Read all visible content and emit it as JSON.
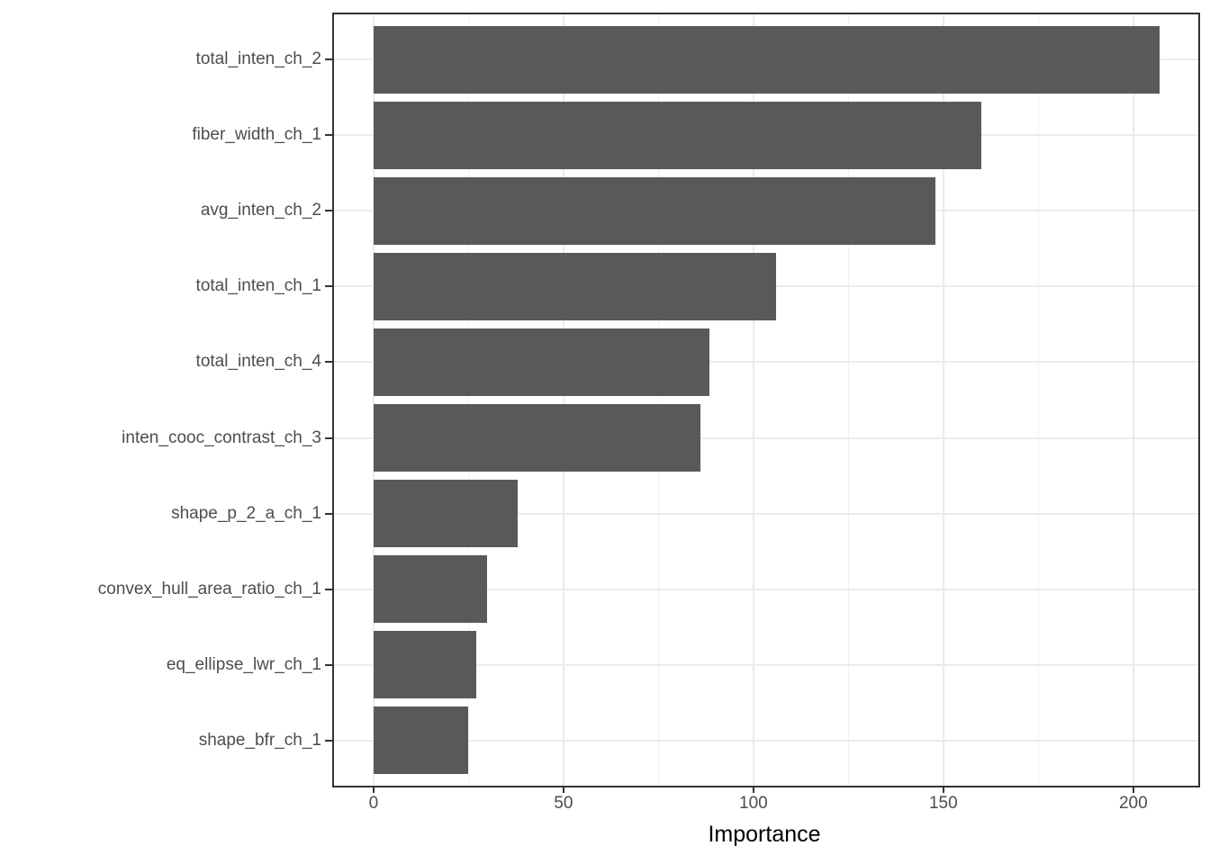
{
  "chart_data": {
    "type": "bar",
    "orientation": "horizontal",
    "title": "",
    "xlabel": "Importance",
    "ylabel": "",
    "categories": [
      "total_inten_ch_2",
      "fiber_width_ch_1",
      "avg_inten_ch_2",
      "total_inten_ch_1",
      "total_inten_ch_4",
      "inten_cooc_contrast_ch_3",
      "shape_p_2_a_ch_1",
      "convex_hull_area_ratio_ch_1",
      "eq_ellipse_lwr_ch_1",
      "shape_bfr_ch_1"
    ],
    "values": [
      207,
      160,
      148,
      106,
      88.5,
      86,
      38,
      30,
      27,
      25
    ],
    "x_major_ticks": [
      0,
      50,
      100,
      150,
      200
    ],
    "x_minor_ticks": [
      25,
      75,
      125,
      175
    ],
    "xlim": [
      -10.4,
      217.1
    ],
    "bar_width_fraction": 0.9,
    "band_expansion": 0.6,
    "grid": true,
    "legend": false,
    "colors": {
      "bar_fill": "#595959",
      "grid_major": "#EBEBEB",
      "grid_minor": "#F0F0F0",
      "panel_border": "#333333",
      "tick_mark": "#333333",
      "tick_label": "#4D4D4D",
      "axis_title": "#000000",
      "background": "#FFFFFF"
    }
  }
}
